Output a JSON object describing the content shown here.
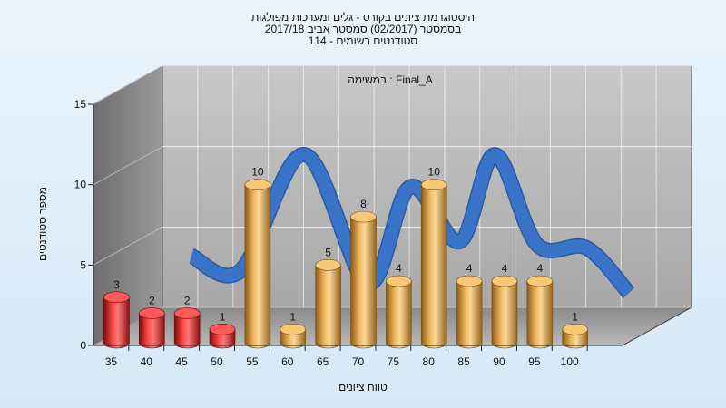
{
  "chart_data": {
    "type": "bar",
    "title_lines": [
      "היסטוגרמת ציונים בקורס - גלים ומערכות מפולגות",
      "בסמסטר  (02/2017)  סמסטר אביב 2017/18",
      "סטודנטים רשומים - 114"
    ],
    "annotation": "Final_A : במשימה",
    "xlabel": "טווח ציונים",
    "ylabel": "מספר סטודנטים",
    "categories": [
      "35",
      "40",
      "45",
      "50",
      "55",
      "60",
      "65",
      "70",
      "75",
      "80",
      "85",
      "90",
      "95",
      "100"
    ],
    "values": [
      3,
      2,
      2,
      1,
      10,
      1,
      5,
      8,
      4,
      10,
      4,
      4,
      4,
      1
    ],
    "bar_colors": [
      "#e41c1c",
      "#e41c1c",
      "#e41c1c",
      "#e41c1c",
      "#e6a23e",
      "#e6a23e",
      "#e6a23e",
      "#e6a23e",
      "#e6a23e",
      "#e6a23e",
      "#e6a23e",
      "#e6a23e",
      "#e6a23e",
      "#e6a23e"
    ],
    "ylim": [
      0,
      15
    ],
    "yticks": [
      "0",
      "5",
      "10",
      "15"
    ],
    "trend_line": {
      "color": "#3a74c8",
      "points": [
        [
          42,
          4.5
        ],
        [
          49,
          3.6
        ],
        [
          58,
          10.8
        ],
        [
          67,
          2.8
        ],
        [
          73,
          8.8
        ],
        [
          80,
          5.4
        ],
        [
          85,
          10.8
        ],
        [
          91,
          5.2
        ],
        [
          98,
          5.0
        ],
        [
          104,
          2.2
        ]
      ]
    },
    "grid": true,
    "legend": "none"
  }
}
